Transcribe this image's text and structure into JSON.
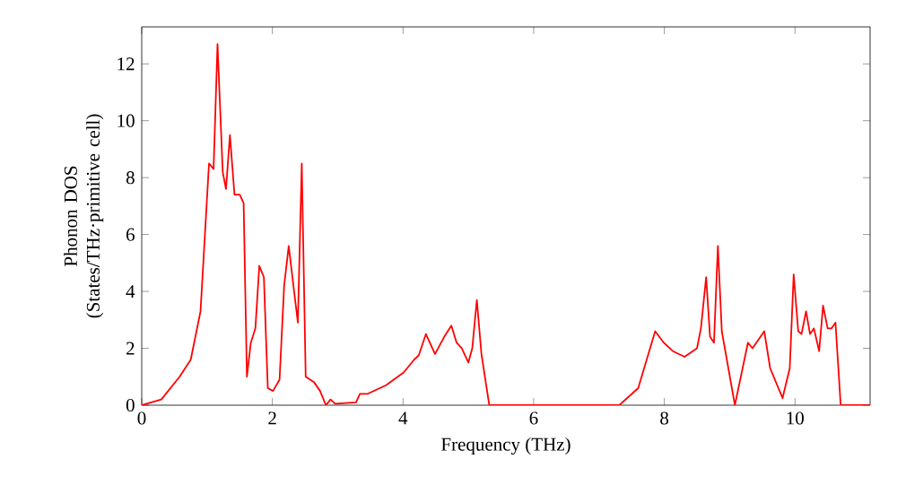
{
  "chart_data": {
    "type": "line",
    "xlabel": "Frequency (THz)",
    "ylabel": "Phonon DOS (States/THz·primitive cell)",
    "xlim": [
      0,
      11.15
    ],
    "ylim": [
      0,
      13.3
    ],
    "xticks": [
      0,
      2,
      4,
      6,
      8,
      10
    ],
    "yticks": [
      0,
      2,
      4,
      6,
      8,
      10,
      12
    ],
    "grid": false,
    "marker": "none",
    "line_style": "solid",
    "series": [
      {
        "color": "#ff0000",
        "x": [
          0,
          0.3,
          0.58,
          0.75,
          0.9,
          1.03,
          1.1,
          1.16,
          1.24,
          1.29,
          1.35,
          1.42,
          1.5,
          1.56,
          1.61,
          1.67,
          1.74,
          1.8,
          1.87,
          1.93,
          2.01,
          2.11,
          2.18,
          2.25,
          2.39,
          2.45,
          2.51,
          2.64,
          2.73,
          2.82,
          2.89,
          2.96,
          3.28,
          3.34,
          3.46,
          3.74,
          4.01,
          4.17,
          4.24,
          4.35,
          4.49,
          4.63,
          4.74,
          4.82,
          4.9,
          5.0,
          5.06,
          5.13,
          5.2,
          5.32,
          7.31,
          7.6,
          7.86,
          7.99,
          8.13,
          8.31,
          8.5,
          8.56,
          8.64,
          8.7,
          8.76,
          8.82,
          8.88,
          9.08,
          9.28,
          9.35,
          9.53,
          9.62,
          9.81,
          9.92,
          9.98,
          10.05,
          10.1,
          10.17,
          10.23,
          10.29,
          10.37,
          10.43,
          10.5,
          10.56,
          10.62,
          10.7,
          11.15
        ],
        "values": [
          0,
          0.2,
          1.0,
          1.6,
          3.3,
          8.5,
          8.3,
          12.7,
          8.2,
          7.6,
          9.5,
          7.4,
          7.4,
          7.1,
          1.0,
          2.2,
          2.7,
          4.9,
          4.5,
          0.6,
          0.5,
          0.9,
          4.2,
          5.6,
          2.9,
          8.5,
          1.0,
          0.8,
          0.5,
          0,
          0.2,
          0.05,
          0.1,
          0.4,
          0.4,
          0.7,
          1.15,
          1.6,
          1.75,
          2.5,
          1.8,
          2.4,
          2.8,
          2.2,
          2.0,
          1.5,
          2.0,
          3.7,
          1.8,
          0,
          0,
          0.6,
          2.6,
          2.2,
          1.9,
          1.7,
          2.0,
          2.7,
          4.5,
          2.4,
          2.2,
          5.6,
          2.6,
          0,
          2.2,
          2.0,
          2.6,
          1.3,
          0.25,
          1.3,
          4.6,
          2.6,
          2.5,
          3.3,
          2.5,
          2.7,
          1.9,
          3.5,
          2.7,
          2.7,
          2.9,
          0,
          0
        ]
      }
    ]
  }
}
